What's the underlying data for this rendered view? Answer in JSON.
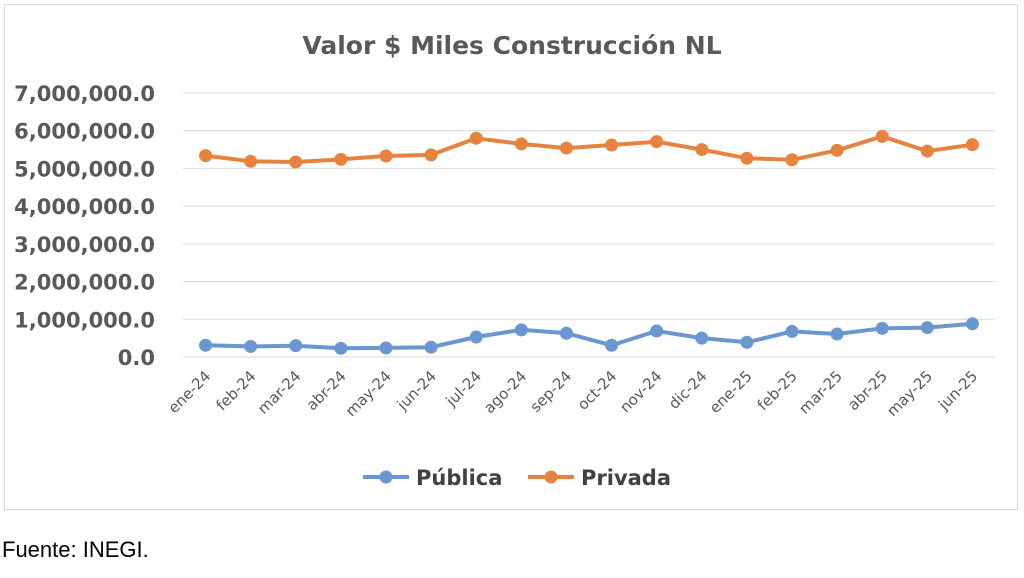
{
  "chart_data": {
    "type": "line",
    "title": "Valor $ Miles Construcción NL",
    "categories": [
      "ene-24",
      "feb-24",
      "mar-24",
      "abr-24",
      "may-24",
      "jun-24",
      "jul-24",
      "ago-24",
      "sep-24",
      "oct-24",
      "nov-24",
      "dic-24",
      "ene-25",
      "feb-25",
      "mar-25",
      "abr-25",
      "may-25",
      "jun-25"
    ],
    "yticks": [
      "0.0",
      "1,000,000.0",
      "2,000,000.0",
      "3,000,000.0",
      "4,000,000.0",
      "5,000,000.0",
      "6,000,000.0",
      "7,000,000.0"
    ],
    "ylim": [
      0,
      7000000
    ],
    "grid": true,
    "legend_position": "bottom",
    "series": [
      {
        "name": "Pública",
        "color": "#6a96d2",
        "values": [
          310000,
          280000,
          300000,
          230000,
          240000,
          260000,
          530000,
          720000,
          630000,
          310000,
          690000,
          500000,
          390000,
          680000,
          610000,
          760000,
          780000,
          880000
        ]
      },
      {
        "name": "Privada",
        "color": "#e7833f",
        "values": [
          5340000,
          5190000,
          5170000,
          5240000,
          5330000,
          5360000,
          5800000,
          5650000,
          5540000,
          5620000,
          5710000,
          5500000,
          5270000,
          5230000,
          5480000,
          5850000,
          5460000,
          5630000
        ]
      }
    ]
  },
  "source_note": "Fuente: INEGI."
}
